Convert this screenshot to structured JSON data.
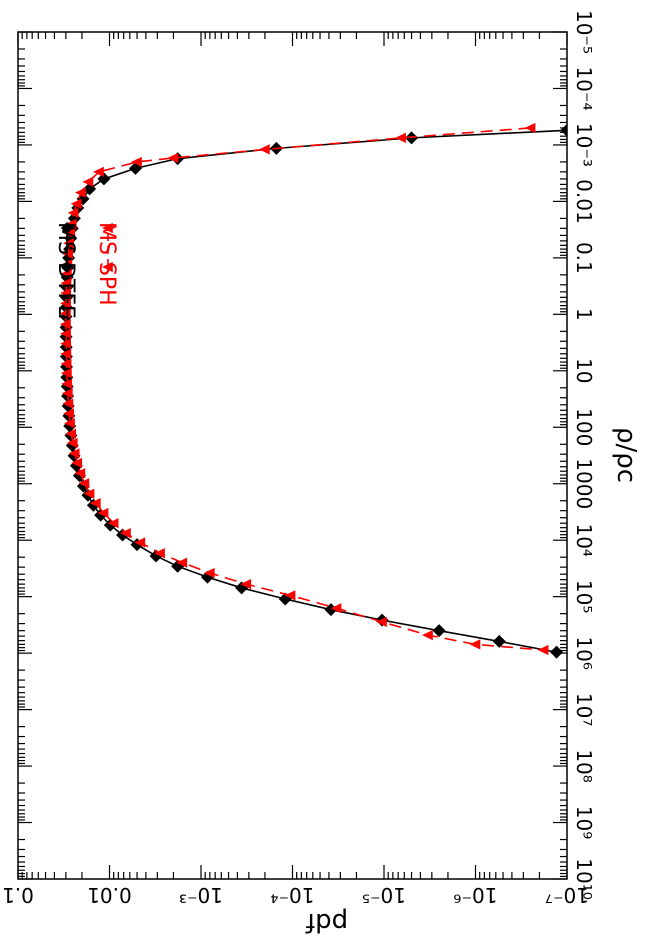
{
  "chart_data": {
    "type": "line",
    "orientation": "rotated 90 degrees clockwise; log-log axes",
    "xlabel": "ρ/ρc",
    "ylabel": "pdf",
    "x_scale": "log",
    "y_scale": "log",
    "xlim": [
      1e-05,
      10000000000
    ],
    "ylim": [
      1e-07,
      0.1
    ],
    "x_tick_labels": [
      "10⁻⁵",
      "10⁻⁴",
      "10⁻³",
      "0.01",
      "0.1",
      "1",
      "10",
      "100",
      "1000",
      "10⁴",
      "10⁵",
      "10⁶",
      "10⁷",
      "10⁸",
      "10⁹",
      "10¹⁰"
    ],
    "y_tick_labels": [
      "10⁻⁷",
      "10⁻⁶",
      "10⁻⁵",
      "10⁻⁴",
      "10⁻³",
      "0.01",
      "0.1"
    ],
    "legend_position": "top-right",
    "grid": false,
    "series": [
      {
        "name": "MS DTFE",
        "color": "#000000",
        "line_style": "solid",
        "marker": "diamond",
        "points": [
          [
            0.00055,
            1e-07
          ],
          [
            0.00075,
            5e-06
          ],
          [
            0.00115,
            0.00015
          ],
          [
            0.00175,
            0.0018
          ],
          [
            0.0026,
            0.0052
          ],
          [
            0.004,
            0.0115
          ],
          [
            0.006,
            0.0165
          ],
          [
            0.009,
            0.0195
          ],
          [
            0.013,
            0.0222
          ],
          [
            0.02,
            0.0242
          ],
          [
            0.03,
            0.0255
          ],
          [
            0.045,
            0.0265
          ],
          [
            0.07,
            0.0273
          ],
          [
            0.1,
            0.028
          ],
          [
            0.15,
            0.0285
          ],
          [
            0.22,
            0.029
          ],
          [
            0.33,
            0.0293
          ],
          [
            0.5,
            0.0295
          ],
          [
            0.75,
            0.0297
          ],
          [
            1.1,
            0.0298
          ],
          [
            1.7,
            0.0298
          ],
          [
            2.5,
            0.0298
          ],
          [
            3.8,
            0.0297
          ],
          [
            5.6,
            0.0296
          ],
          [
            8.5,
            0.0295
          ],
          [
            13,
            0.0293
          ],
          [
            19,
            0.029
          ],
          [
            28,
            0.0287
          ],
          [
            42,
            0.0283
          ],
          [
            63,
            0.0278
          ],
          [
            95,
            0.0272
          ],
          [
            140,
            0.0264
          ],
          [
            210,
            0.0255
          ],
          [
            320,
            0.0244
          ],
          [
            480,
            0.023
          ],
          [
            720,
            0.0213
          ],
          [
            1100,
            0.0193
          ],
          [
            1600,
            0.0172
          ],
          [
            2400,
            0.015
          ],
          [
            3600,
            0.0125
          ],
          [
            5400,
            0.0098
          ],
          [
            8100,
            0.0072
          ],
          [
            12000,
            0.005
          ],
          [
            19000,
            0.0031
          ],
          [
            29000,
            0.0018
          ],
          [
            45000,
            0.00085
          ],
          [
            70000,
            0.00036
          ],
          [
            110000,
            0.00012
          ],
          [
            170000,
            3.8e-05
          ],
          [
            260000,
            1.05e-05
          ],
          [
            400000,
            2.5e-06
          ],
          [
            620000,
            5.5e-07
          ],
          [
            960000,
            1.3e-07
          ]
        ]
      },
      {
        "name": "MS SPH",
        "color": "#ff0000",
        "line_style": "dashed",
        "marker": "triangle",
        "points": [
          [
            0.0005,
            2.5e-07
          ],
          [
            0.00075,
            6.5e-06
          ],
          [
            0.0012,
            0.0002
          ],
          [
            0.0017,
            0.002
          ],
          [
            0.002,
            0.005
          ],
          [
            0.003,
            0.013
          ],
          [
            0.0045,
            0.017
          ],
          [
            0.007,
            0.0205
          ],
          [
            0.011,
            0.0228
          ],
          [
            0.016,
            0.0246
          ],
          [
            0.025,
            0.0258
          ],
          [
            0.037,
            0.0268
          ],
          [
            0.055,
            0.0276
          ],
          [
            0.085,
            0.0283
          ],
          [
            0.13,
            0.0288
          ],
          [
            0.19,
            0.0292
          ],
          [
            0.28,
            0.0295
          ],
          [
            0.42,
            0.0297
          ],
          [
            0.64,
            0.0298
          ],
          [
            0.96,
            0.0299
          ],
          [
            1.5,
            0.0299
          ],
          [
            2.2,
            0.0298
          ],
          [
            3.3,
            0.0297
          ],
          [
            5,
            0.0296
          ],
          [
            7.5,
            0.0294
          ],
          [
            11,
            0.0292
          ],
          [
            17,
            0.0289
          ],
          [
            25,
            0.0285
          ],
          [
            38,
            0.0281
          ],
          [
            57,
            0.0276
          ],
          [
            85,
            0.027
          ],
          [
            130,
            0.0262
          ],
          [
            190,
            0.0252
          ],
          [
            290,
            0.024
          ],
          [
            430,
            0.0225
          ],
          [
            650,
            0.0208
          ],
          [
            980,
            0.0188
          ],
          [
            1500,
            0.0165
          ],
          [
            2200,
            0.0141
          ],
          [
            3300,
            0.0116
          ],
          [
            5000,
            0.009
          ],
          [
            7500,
            0.0066
          ],
          [
            11000,
            0.0046
          ],
          [
            17000,
            0.0028
          ],
          [
            25000,
            0.0016
          ],
          [
            38000,
            0.0008
          ],
          [
            60000,
            0.00032
          ],
          [
            95000,
            0.000105
          ],
          [
            160000,
            3.3e-05
          ],
          [
            280000,
            1.05e-05
          ],
          [
            480000,
            3.3e-06
          ],
          [
            700000,
            1e-06
          ],
          [
            880000,
            1.8e-07
          ]
        ]
      }
    ]
  }
}
